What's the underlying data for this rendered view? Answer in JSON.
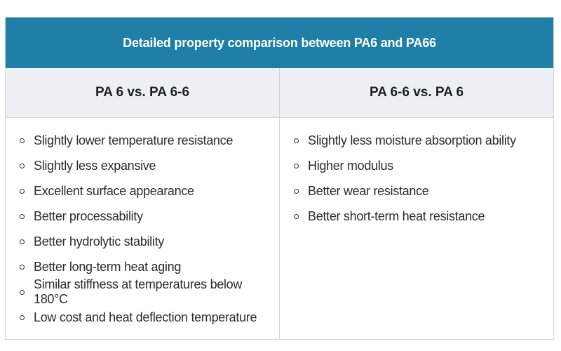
{
  "title": "Detailed property comparison between PA6 and PA66",
  "columns": [
    {
      "header": "PA 6 vs. PA 6-6",
      "items": [
        "Slightly lower temperature resistance",
        "Slightly less expansive",
        "Excellent surface appearance",
        "Better processability",
        "Better hydrolytic stability",
        "Better long-term heat aging",
        "Similar stiffness at temperatures below 180°C",
        "Low cost and heat deflection temperature"
      ]
    },
    {
      "header": "PA 6-6 vs. PA 6",
      "items": [
        "Slightly less moisture absorption ability",
        "Higher modulus",
        "Better wear resistance",
        "Better short-term heat resistance"
      ]
    }
  ],
  "icons": {
    "bullet": "hollow-circle-bullet-icon"
  },
  "colors": {
    "title_bar": "#1f7fa6",
    "header_row": "#eef1f3"
  }
}
